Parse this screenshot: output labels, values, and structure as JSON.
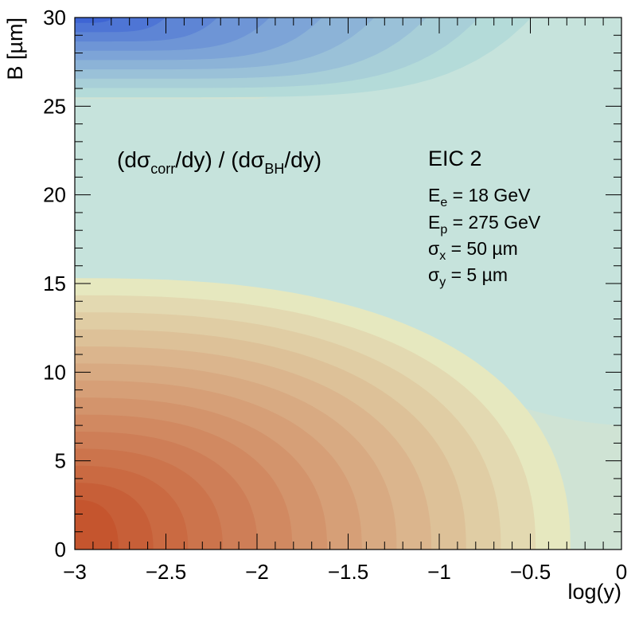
{
  "chart_data": {
    "type": "heatmap",
    "xlabel": "log(y)",
    "ylabel": "B [µm]",
    "xlim": [
      -3,
      0
    ],
    "ylim": [
      0,
      30
    ],
    "x_ticks": [
      {
        "value": -3,
        "label": "−3"
      },
      {
        "value": -2.5,
        "label": "−2.5"
      },
      {
        "value": -2,
        "label": "−2"
      },
      {
        "value": -1.5,
        "label": "−1.5"
      },
      {
        "value": -1,
        "label": "−1"
      },
      {
        "value": -0.5,
        "label": "−0.5"
      },
      {
        "value": 0,
        "label": "0"
      }
    ],
    "y_ticks": [
      {
        "value": 0,
        "label": "0"
      },
      {
        "value": 5,
        "label": "5"
      },
      {
        "value": 10,
        "label": "10"
      },
      {
        "value": 15,
        "label": "15"
      },
      {
        "value": 20,
        "label": "20"
      },
      {
        "value": 25,
        "label": "25"
      },
      {
        "value": 30,
        "label": "30"
      }
    ],
    "title": {
      "main": "(dσ",
      "sub1": "corr",
      "mid": "/dy) / (dσ",
      "sub2": "BH",
      "end": "/dy)"
    },
    "annotations": {
      "experiment": "EIC 2",
      "params": [
        {
          "sym": "E",
          "sub": "e",
          "rest": " = 18 GeV"
        },
        {
          "sym": "E",
          "sub": "p",
          "rest": " = 275 GeV"
        },
        {
          "sym": "σ",
          "sub": "x",
          "rest": " = 50 µm"
        },
        {
          "sym": "σ",
          "sub": "y",
          "rest": " = 5 µm"
        }
      ]
    },
    "colors": {
      "background": "#cfe3d4",
      "warm_low": "#c5552e",
      "warm_high": "#e6e8bf",
      "cool_top": "#3e65d4",
      "cool_bottom": "#b4dbd9"
    }
  }
}
